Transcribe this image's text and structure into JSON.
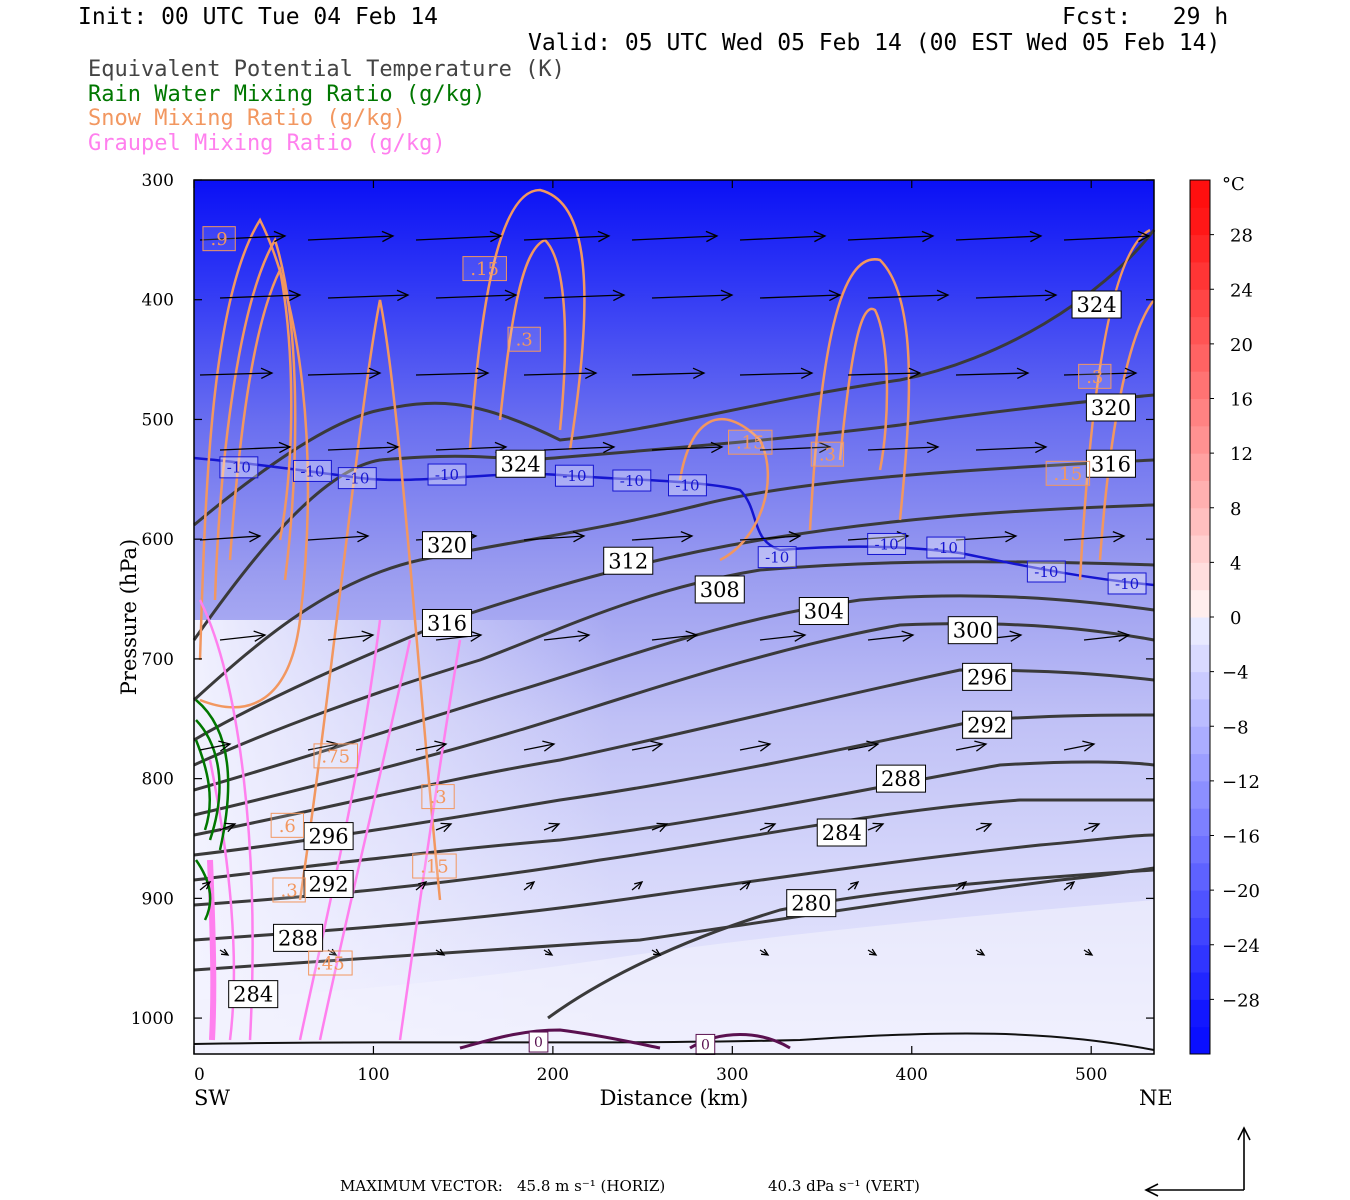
{
  "header": {
    "init": "Init: 00 UTC Tue 04 Feb 14",
    "fcst": "Fcst:   29 h",
    "valid": "Valid: 05 UTC Wed 05 Feb 14 (00 EST Wed 05 Feb 14)"
  },
  "legend": [
    {
      "label": "Equivalent Potential Temperature (K)",
      "color": "#333333"
    },
    {
      "label": "Rain Water Mixing Ratio (g/kg)",
      "color": "#007700"
    },
    {
      "label": "Snow Mixing Ratio (g/kg)",
      "color": "#f29760"
    },
    {
      "label": "Graupel Mixing Ratio (g/kg)",
      "color": "#ff80ee"
    }
  ],
  "footer": {
    "max_vector_label": "MAXIMUM VECTOR:",
    "horiz": "45.8 m s⁻¹ (HORIZ)",
    "vert": "40.3 dPa s⁻¹ (VERT)"
  },
  "chart_data": {
    "type": "cross-section",
    "xlabel": "Distance (km)",
    "ylabel": "Pressure (hPa)",
    "x_ticks": [
      0,
      100,
      200,
      300,
      400,
      500
    ],
    "x_end_labels": {
      "left": "SW",
      "right": "NE"
    },
    "xlim": [
      0,
      535
    ],
    "y_ticks": [
      300,
      400,
      500,
      600,
      700,
      800,
      900,
      1000
    ],
    "ylim": [
      1030,
      300
    ],
    "colorbar": {
      "unit": "°C",
      "ticks": [
        28,
        24,
        20,
        16,
        12,
        8,
        4,
        0,
        -4,
        -8,
        -12,
        -16,
        -20,
        -24,
        -28
      ],
      "range": [
        -32,
        32
      ]
    },
    "theta_e_contours": [
      {
        "label": "324",
        "x": 182,
        "p": 537
      },
      {
        "label": "324",
        "x": 503,
        "p": 404
      },
      {
        "label": "320",
        "x": 141,
        "p": 605
      },
      {
        "label": "320",
        "x": 511,
        "p": 490
      },
      {
        "label": "316",
        "x": 141,
        "p": 670
      },
      {
        "label": "316",
        "x": 511,
        "p": 537
      },
      {
        "label": "312",
        "x": 242,
        "p": 618
      },
      {
        "label": "308",
        "x": 293,
        "p": 642
      },
      {
        "label": "304",
        "x": 351,
        "p": 660
      },
      {
        "label": "300",
        "x": 434,
        "p": 676
      },
      {
        "label": "296",
        "x": 442,
        "p": 715
      },
      {
        "label": "292",
        "x": 442,
        "p": 755
      },
      {
        "label": "288",
        "x": 394,
        "p": 800
      },
      {
        "label": "284",
        "x": 361,
        "p": 845
      },
      {
        "label": "280",
        "x": 344,
        "p": 904
      },
      {
        "label": "296",
        "x": 75,
        "p": 848
      },
      {
        "label": "292",
        "x": 75,
        "p": 888
      },
      {
        "label": "288",
        "x": 58,
        "p": 933
      },
      {
        "label": "284",
        "x": 33,
        "p": 980
      }
    ],
    "isotherm_labels": [
      {
        "label": "-10",
        "x": 25,
        "p": 540
      },
      {
        "label": "-10",
        "x": 66,
        "p": 543
      },
      {
        "label": "-10",
        "x": 91,
        "p": 549
      },
      {
        "label": "-10",
        "x": 141,
        "p": 546
      },
      {
        "label": "-10",
        "x": 212,
        "p": 547
      },
      {
        "label": "-10",
        "x": 244,
        "p": 551
      },
      {
        "label": "-10",
        "x": 275,
        "p": 555
      },
      {
        "label": "-10",
        "x": 325,
        "p": 615
      },
      {
        "label": "-10",
        "x": 386,
        "p": 604
      },
      {
        "label": "-10",
        "x": 419,
        "p": 607
      },
      {
        "label": "-10",
        "x": 475,
        "p": 627
      },
      {
        "label": "-10",
        "x": 520,
        "p": 637
      }
    ],
    "snow_labels": [
      {
        "label": ".9",
        "x": 14,
        "p": 349
      },
      {
        "label": ".15",
        "x": 162,
        "p": 374
      },
      {
        "label": ".3",
        "x": 184,
        "p": 433
      },
      {
        "label": ".15",
        "x": 310,
        "p": 519
      },
      {
        "label": ".3",
        "x": 353,
        "p": 529
      },
      {
        "label": ".3",
        "x": 502,
        "p": 464
      },
      {
        "label": ".15",
        "x": 487,
        "p": 545
      },
      {
        "label": ".75",
        "x": 79,
        "p": 781
      },
      {
        "label": ".3",
        "x": 136,
        "p": 815
      },
      {
        "label": ".6",
        "x": 52,
        "p": 839
      },
      {
        "label": ".15",
        "x": 134,
        "p": 873
      },
      {
        "label": ".45",
        "x": 76,
        "p": 954
      },
      {
        "label": ".3",
        "x": 53,
        "p": 893
      }
    ],
    "zero_labels": [
      {
        "label": "0",
        "x": 192,
        "p": 1020
      },
      {
        "label": "0",
        "x": 285,
        "p": 1022
      }
    ]
  }
}
